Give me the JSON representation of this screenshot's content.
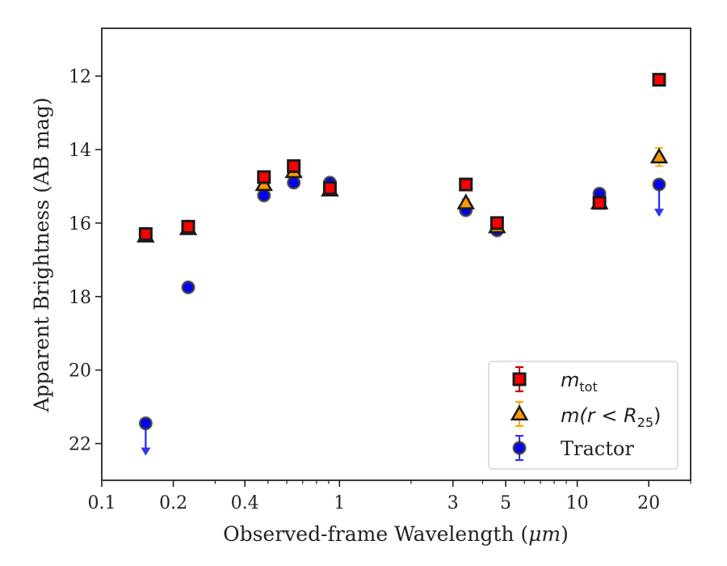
{
  "chart_data": {
    "type": "scatter",
    "xlabel": "Observed-frame Wavelength (",
    "xlabel_unit": "μm",
    "xlabel_close": ")",
    "ylabel": "Apparent Brightness (AB mag)",
    "x_scale": "log",
    "xlim": [
      0.1,
      30
    ],
    "ylim": [
      23,
      10.7
    ],
    "y_inverted": true,
    "x_ticks": [
      0.1,
      0.2,
      0.4,
      1,
      3,
      5,
      10,
      20
    ],
    "x_tick_labels": [
      "0.1",
      "0.2",
      "0.4",
      "1",
      "3",
      "5",
      "10",
      "20"
    ],
    "y_ticks": [
      12,
      14,
      16,
      18,
      20,
      22
    ],
    "y_tick_labels": [
      "12",
      "14",
      "16",
      "18",
      "20",
      "22"
    ],
    "grid": false,
    "legend_position": "lower-right",
    "series": [
      {
        "name": "m_tot",
        "legend_main": "m",
        "legend_sub": "tot",
        "marker": "square",
        "color": "#ff0000",
        "edge_color": "#1a1a1a",
        "errorbar_color": "#cc0000",
        "points": [
          {
            "x": 0.153,
            "y": 16.3,
            "err": 0.1
          },
          {
            "x": 0.231,
            "y": 16.1,
            "err": 0.1
          },
          {
            "x": 0.481,
            "y": 14.75,
            "err": 0.1
          },
          {
            "x": 0.642,
            "y": 14.45,
            "err": 0.1
          },
          {
            "x": 0.911,
            "y": 15.05,
            "err": 0.1
          },
          {
            "x": 3.4,
            "y": 14.95,
            "err": 0.1
          },
          {
            "x": 4.6,
            "y": 16.0,
            "err": 0.1
          },
          {
            "x": 12.4,
            "y": 15.45,
            "err": 0.1
          },
          {
            "x": 22.1,
            "y": 12.1,
            "err": 0.1
          }
        ]
      },
      {
        "name": "m(r < R_25)",
        "legend_main": "m(r < R",
        "legend_sub": "25",
        "legend_close": ")",
        "marker": "triangle",
        "color": "#ff9900",
        "edge_color": "#1a1a1a",
        "errorbar_color": "#ffaa00",
        "points": [
          {
            "x": 0.153,
            "y": 16.35,
            "err": 0.1
          },
          {
            "x": 0.231,
            "y": 16.15,
            "err": 0.1
          },
          {
            "x": 0.481,
            "y": 14.95,
            "err": 0.1
          },
          {
            "x": 0.642,
            "y": 14.6,
            "err": 0.1
          },
          {
            "x": 0.911,
            "y": 15.1,
            "err": 0.1
          },
          {
            "x": 3.4,
            "y": 15.45,
            "err": 0.1
          },
          {
            "x": 4.6,
            "y": 16.1,
            "err": 0.1
          },
          {
            "x": 12.4,
            "y": 15.45,
            "err": 0.1
          },
          {
            "x": 22.1,
            "y": 14.2,
            "err": 0.25
          }
        ]
      },
      {
        "name": "Tractor",
        "legend_main": "Tractor",
        "marker": "circle",
        "color": "#0000ff",
        "edge_color": "#333333",
        "errorbar_color": "#3333ee",
        "points": [
          {
            "x": 0.153,
            "y": 21.45,
            "err": 0.0,
            "upper_limit": true
          },
          {
            "x": 0.231,
            "y": 17.75,
            "err": 0.05
          },
          {
            "x": 0.481,
            "y": 15.25,
            "err": 0.05
          },
          {
            "x": 0.642,
            "y": 14.9,
            "err": 0.05
          },
          {
            "x": 0.911,
            "y": 14.9,
            "err": 0.05
          },
          {
            "x": 3.4,
            "y": 15.65,
            "err": 0.05
          },
          {
            "x": 4.6,
            "y": 16.2,
            "err": 0.05
          },
          {
            "x": 12.4,
            "y": 15.2,
            "err": 0.05
          },
          {
            "x": 22.1,
            "y": 14.95,
            "err": 0.0,
            "upper_limit": true
          }
        ]
      }
    ]
  }
}
